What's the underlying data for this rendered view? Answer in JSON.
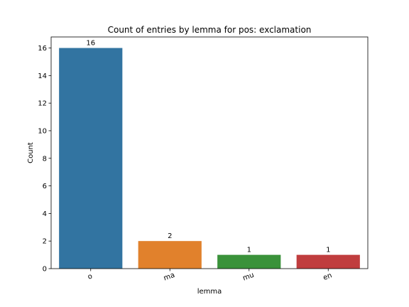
{
  "chart_data": {
    "type": "bar",
    "title": "Count of entries by lemma for pos: exclamation",
    "xlabel": "lemma",
    "ylabel": "Count",
    "categories": [
      "o",
      "ma",
      "mu",
      "en"
    ],
    "values": [
      16,
      2,
      1,
      1
    ],
    "data_labels": [
      "16",
      "2",
      "1",
      "1"
    ],
    "colors": [
      "#3274a1",
      "#e1812c",
      "#3a923a",
      "#c03d3e"
    ],
    "ylim": [
      0,
      16.8
    ],
    "yticks": [
      0,
      2,
      4,
      6,
      8,
      10,
      12,
      14,
      16
    ],
    "grid": false,
    "legend": "none"
  }
}
